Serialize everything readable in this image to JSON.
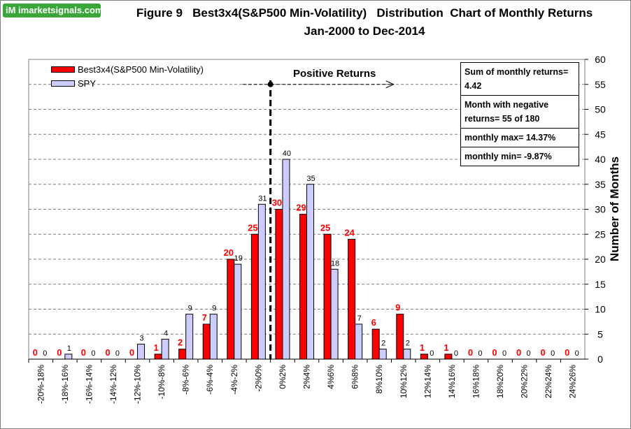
{
  "logo_text": "iM imarketsignals.com",
  "chart_data": {
    "type": "bar",
    "title": "Figure 9   Best3x4(S&P500 Min-Volatility)   Distribution  Chart of Monthly Returns",
    "subtitle": "Jan-2000 to Dec-2014",
    "ylabel": "Number of Months",
    "xlabel": "",
    "ylim": [
      0,
      60
    ],
    "yticks": [
      0,
      5,
      10,
      15,
      20,
      25,
      30,
      35,
      40,
      45,
      50,
      55,
      60
    ],
    "grid": true,
    "legend_position": "top-left",
    "categories": [
      "-20%-18%",
      "-18%-16%",
      "-16%-14%",
      "-14%-12%",
      "-12%-10%",
      "-10%-8%",
      "-8%-6%",
      "-6%-4%",
      "-4%-2%",
      "-2%0%",
      "0%2%",
      "2%4%",
      "4%6%",
      "6%8%",
      "8%10%",
      "10%12%",
      "12%14%",
      "14%16%",
      "16%18%",
      "18%20%",
      "20%22%",
      "22%24%",
      "24%26%"
    ],
    "series": [
      {
        "name": "Best3x4(S&P500 Min-Volatility)",
        "color": "#ff0000",
        "label_color": "#ff0000",
        "values": [
          0,
          0,
          0,
          0,
          0,
          1,
          2,
          7,
          20,
          25,
          30,
          29,
          25,
          24,
          6,
          9,
          1,
          1,
          0,
          0,
          0,
          0,
          0
        ]
      },
      {
        "name": "SPY",
        "color": "#ccccff",
        "label_color": "#000000",
        "values": [
          0,
          1,
          0,
          0,
          3,
          4,
          9,
          9,
          19,
          31,
          40,
          35,
          18,
          7,
          2,
          2,
          0,
          0,
          0,
          0,
          0,
          0,
          0
        ]
      }
    ],
    "annotation": "Positive Returns",
    "stats": [
      "Sum of monthly returns= 4.42",
      "Month with negative returns=  55 of 180",
      "monthly max= 14.37%",
      "monthly min= -9.87%"
    ]
  }
}
